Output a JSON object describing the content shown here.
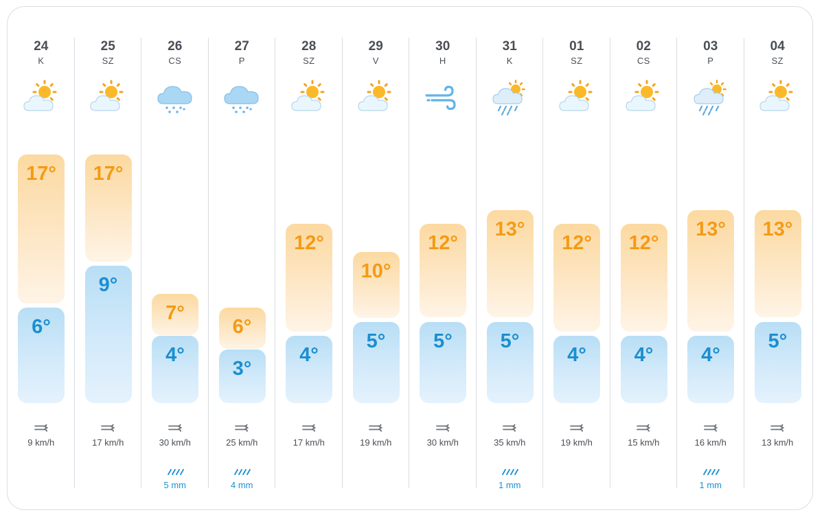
{
  "forecast": {
    "colors": {
      "max_text": "#f49a16",
      "min_text": "#1b8fd0",
      "max_bar": "#fde3b8",
      "min_bar": "#cfe8fa",
      "divider": "#d8dce1"
    },
    "days": [
      {
        "day": "24",
        "weekday": "K",
        "icon": "partly-cloudy-icon",
        "max": 17,
        "min": 6,
        "max_label": "17°",
        "min_label": "6°",
        "wind": "9 km/h",
        "rain": null
      },
      {
        "day": "25",
        "weekday": "SZ",
        "icon": "partly-cloudy-icon",
        "max": 17,
        "min": 9,
        "max_label": "17°",
        "min_label": "9°",
        "wind": "17 km/h",
        "rain": null
      },
      {
        "day": "26",
        "weekday": "CS",
        "icon": "rain-cloud-icon",
        "max": 7,
        "min": 4,
        "max_label": "7°",
        "min_label": "4°",
        "wind": "30 km/h",
        "rain": "5 mm"
      },
      {
        "day": "27",
        "weekday": "P",
        "icon": "rain-cloud-icon",
        "max": 6,
        "min": 3,
        "max_label": "6°",
        "min_label": "3°",
        "wind": "25 km/h",
        "rain": "4 mm"
      },
      {
        "day": "28",
        "weekday": "SZ",
        "icon": "partly-cloudy-icon",
        "max": 12,
        "min": 4,
        "max_label": "12°",
        "min_label": "4°",
        "wind": "17 km/h",
        "rain": null
      },
      {
        "day": "29",
        "weekday": "V",
        "icon": "partly-cloudy-icon",
        "max": 10,
        "min": 5,
        "max_label": "10°",
        "min_label": "5°",
        "wind": "19 km/h",
        "rain": null
      },
      {
        "day": "30",
        "weekday": "H",
        "icon": "windy-icon",
        "max": 12,
        "min": 5,
        "max_label": "12°",
        "min_label": "5°",
        "wind": "30 km/h",
        "rain": null
      },
      {
        "day": "31",
        "weekday": "K",
        "icon": "sun-rain-icon",
        "max": 13,
        "min": 5,
        "max_label": "13°",
        "min_label": "5°",
        "wind": "35 km/h",
        "rain": "1 mm"
      },
      {
        "day": "01",
        "weekday": "SZ",
        "icon": "partly-cloudy-icon",
        "max": 12,
        "min": 4,
        "max_label": "12°",
        "min_label": "4°",
        "wind": "19 km/h",
        "rain": null
      },
      {
        "day": "02",
        "weekday": "CS",
        "icon": "partly-cloudy-icon",
        "max": 12,
        "min": 4,
        "max_label": "12°",
        "min_label": "4°",
        "wind": "15 km/h",
        "rain": null
      },
      {
        "day": "03",
        "weekday": "P",
        "icon": "sun-rain-icon",
        "max": 13,
        "min": 4,
        "max_label": "13°",
        "min_label": "4°",
        "wind": "16 km/h",
        "rain": "1 mm"
      },
      {
        "day": "04",
        "weekday": "SZ",
        "icon": "partly-cloudy-icon",
        "max": 13,
        "min": 5,
        "max_label": "13°",
        "min_label": "5°",
        "wind": "13 km/h",
        "rain": null
      }
    ]
  }
}
